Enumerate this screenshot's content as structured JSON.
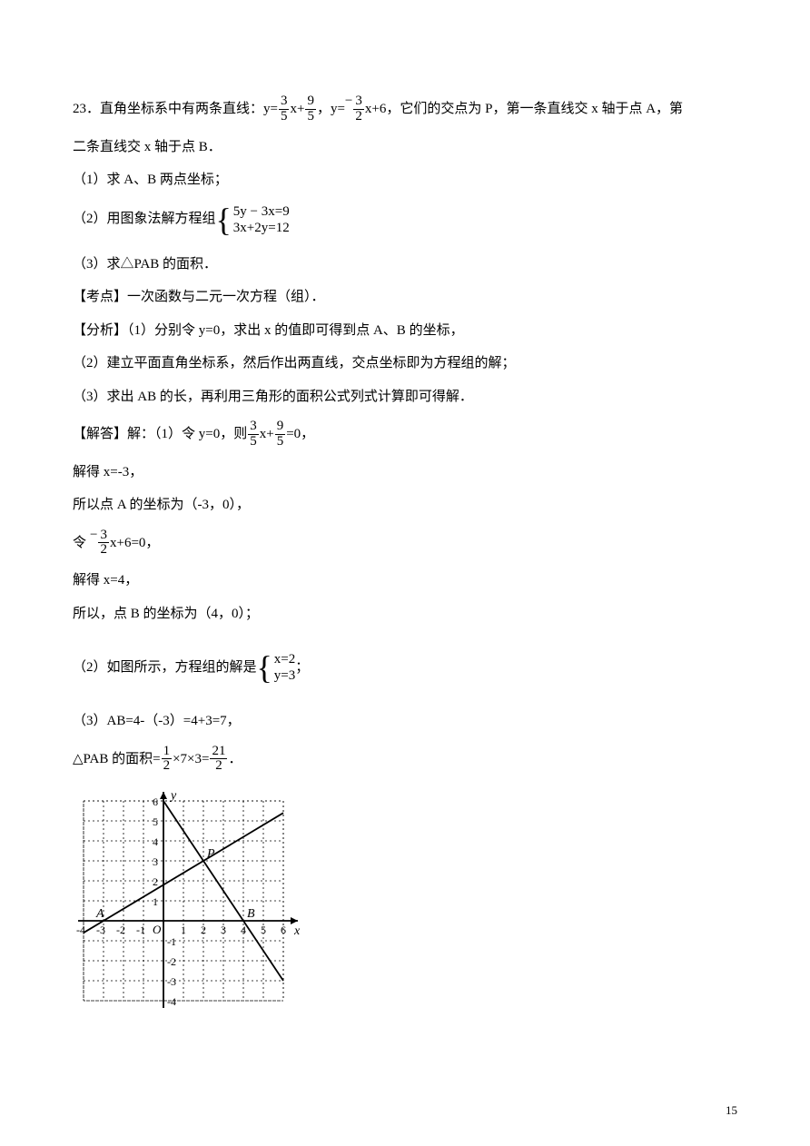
{
  "problem": {
    "number": "23．",
    "intro_part1": "直角坐标系中有两条直线：y=",
    "eq1_num1": "3",
    "eq1_den1": "5",
    "intro_part2": "x+",
    "eq1_num2": "9",
    "eq1_den2": "5",
    "intro_part3": "，y=",
    "eq2_sign": "−",
    "eq2_num": "3",
    "eq2_den": "2",
    "intro_part4": "x+6，它们的交点为 P，第一条直线交 x 轴于点 A，第",
    "intro_line2": "二条直线交 x 轴于点 B．",
    "q1": "（1）求 A、B 两点坐标；",
    "q2_pre": "（2）用图象法解方程组",
    "q2_sys_line1": "5y − 3x=9",
    "q2_sys_line2": "3x+2y=12",
    "q3": "（3）求△PAB 的面积．"
  },
  "exam_point": {
    "label": "【考点】",
    "text": "一次函数与二元一次方程（组）．"
  },
  "analysis": {
    "label": "【分析】",
    "p1": "（1）分别令 y=0，求出 x 的值即可得到点 A、B 的坐标，",
    "p2": "（2）建立平面直角坐标系，然后作出两直线，交点坐标即为方程组的解；",
    "p3": "（3）求出 AB 的长，再利用三角形的面积公式列式计算即可得解．"
  },
  "solution": {
    "label": "【解答】",
    "s1_pre": "解：（1）令 y=0，则",
    "s1_num1": "3",
    "s1_den1": "5",
    "s1_mid": "x+",
    "s1_num2": "9",
    "s1_den2": "5",
    "s1_post": "=0，",
    "s1_result": "解得 x=‑3，",
    "s1_pointA": "所以点 A 的坐标为（‑3，0），",
    "s1_let": "令",
    "s1_sign": "−",
    "s1_f_num": "3",
    "s1_f_den": "2",
    "s1_exp": "x+6=0，",
    "s1_result2": "解得 x=4，",
    "s1_pointB": "所以，点 B 的坐标为（4，0）；",
    "s2_pre": "（2）如图所示，方程组的解是",
    "s2_sys_line1": "x=2",
    "s2_sys_line2": "y=3",
    "s2_post": "；",
    "s3_line1": "（3）AB=4‑（‑3）=4+3=7，",
    "s3_pre": "△PAB 的面积=",
    "s3_f1_num": "1",
    "s3_f1_den": "2",
    "s3_mid": "×7×3=",
    "s3_f2_num": "21",
    "s3_f2_den": "2",
    "s3_post": "．"
  },
  "graph": {
    "xmin": -4,
    "xmax": 6,
    "ymin": -4,
    "ymax": 6,
    "grid_color": "#000000",
    "axis_color": "#000000",
    "point_A_label": "A",
    "point_B_label": "B",
    "point_P_label": "P",
    "origin_label": "O",
    "x_label": "x",
    "y_label": "y",
    "x_ticks": [
      "-4",
      "-3",
      "-2",
      "-1",
      "1",
      "2",
      "3",
      "4",
      "5",
      "6"
    ],
    "y_ticks_pos": [
      "1",
      "2",
      "3",
      "4",
      "5",
      "6"
    ],
    "y_ticks_neg": [
      "-1",
      "-2",
      "-3",
      "-4"
    ]
  },
  "page_number": "15"
}
